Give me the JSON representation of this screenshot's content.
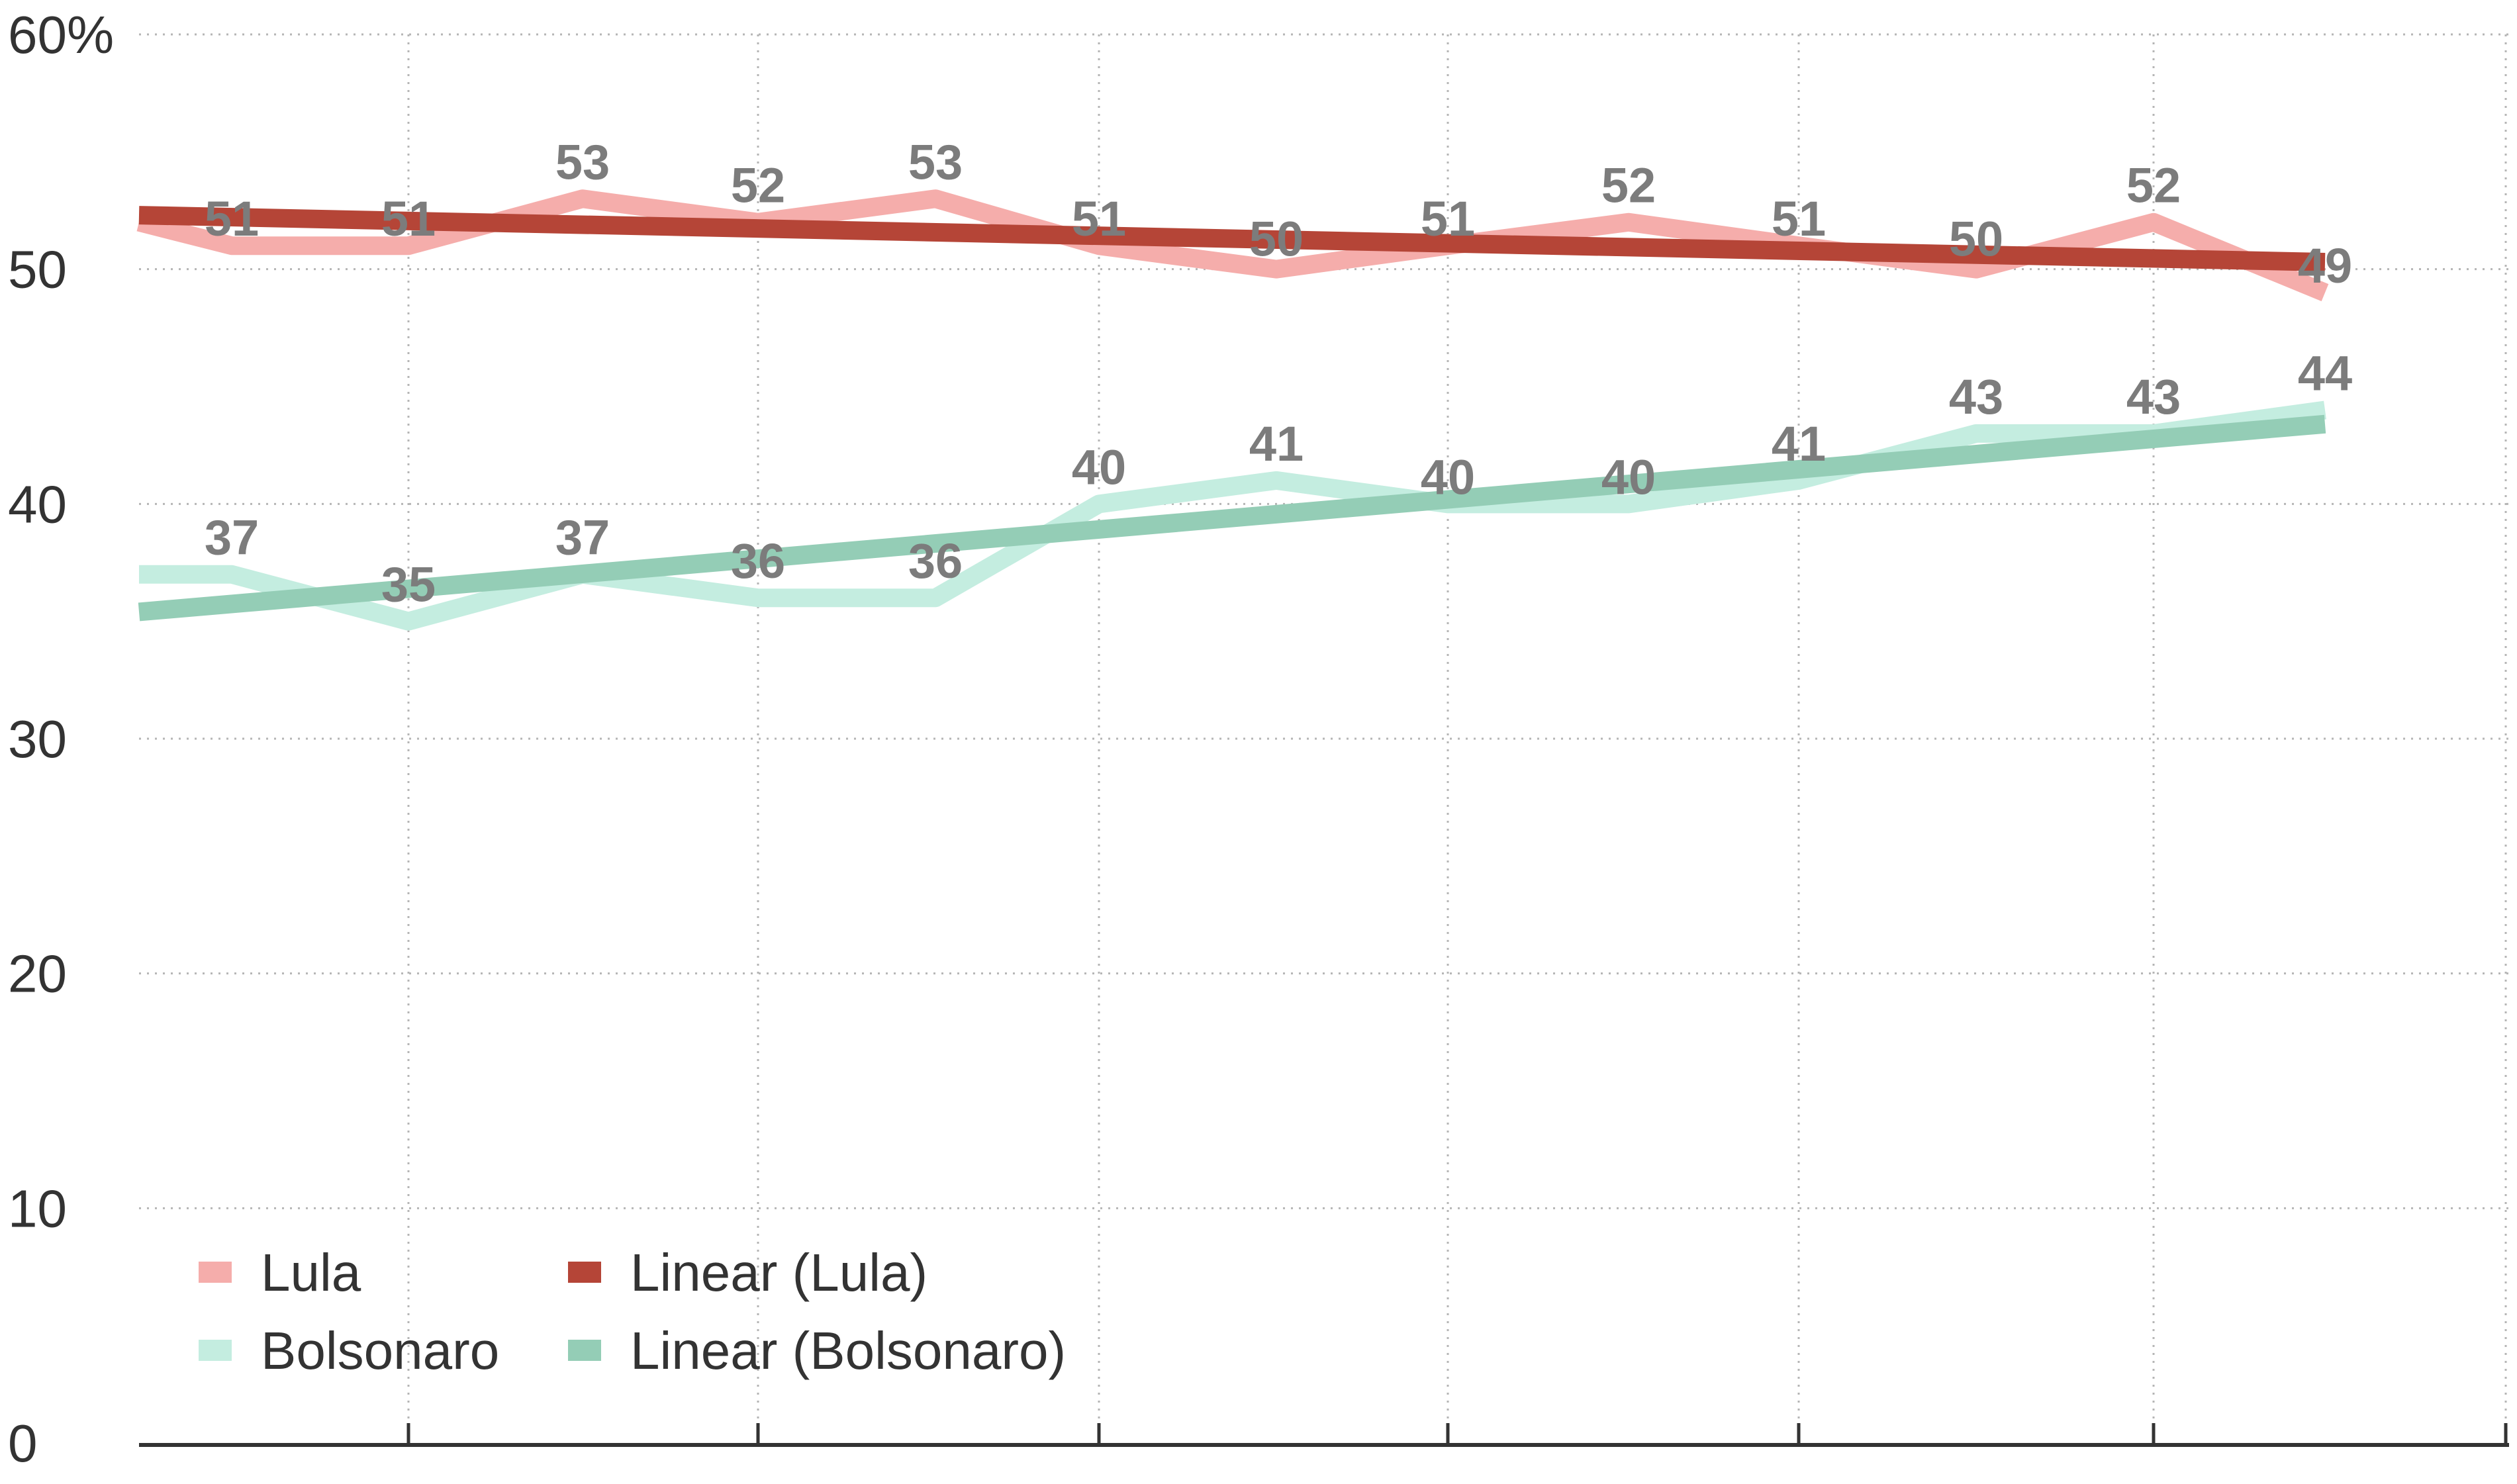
{
  "chart_data": {
    "type": "line",
    "title": "",
    "xlabel": "",
    "ylabel": "",
    "ylim": [
      0,
      60
    ],
    "y_ticks": [
      "0",
      "10",
      "20",
      "30",
      "40",
      "50",
      "60%"
    ],
    "grid": "dotted",
    "legend_position": "bottom-left",
    "series": [
      {
        "name": "Lula",
        "color": "#f5adab",
        "values": [
          52,
          51,
          51,
          53,
          52,
          53,
          51,
          50,
          51,
          52,
          51,
          50,
          52,
          49
        ],
        "labels": [
          "",
          "51",
          "51",
          "53",
          "52",
          "53",
          "51",
          "50",
          "51",
          "52",
          "51",
          "50",
          "52",
          "49"
        ]
      },
      {
        "name": "Bolsonaro",
        "color": "#c4ede0",
        "values": [
          37,
          37,
          35,
          37,
          36,
          36,
          40,
          41,
          40,
          40,
          41,
          43,
          43,
          44
        ],
        "labels": [
          "",
          "37",
          "35",
          "37",
          "36",
          "36",
          "40",
          "41",
          "40",
          "40",
          "41",
          "43",
          "43",
          "44"
        ]
      },
      {
        "name": "Linear (Lula)",
        "color": "#b54537",
        "trend": [
          52.3,
          50.3
        ]
      },
      {
        "name": "Linear (Bolsonaro)",
        "color": "#94cdb6",
        "trend": [
          35.4,
          43.4
        ]
      }
    ]
  }
}
